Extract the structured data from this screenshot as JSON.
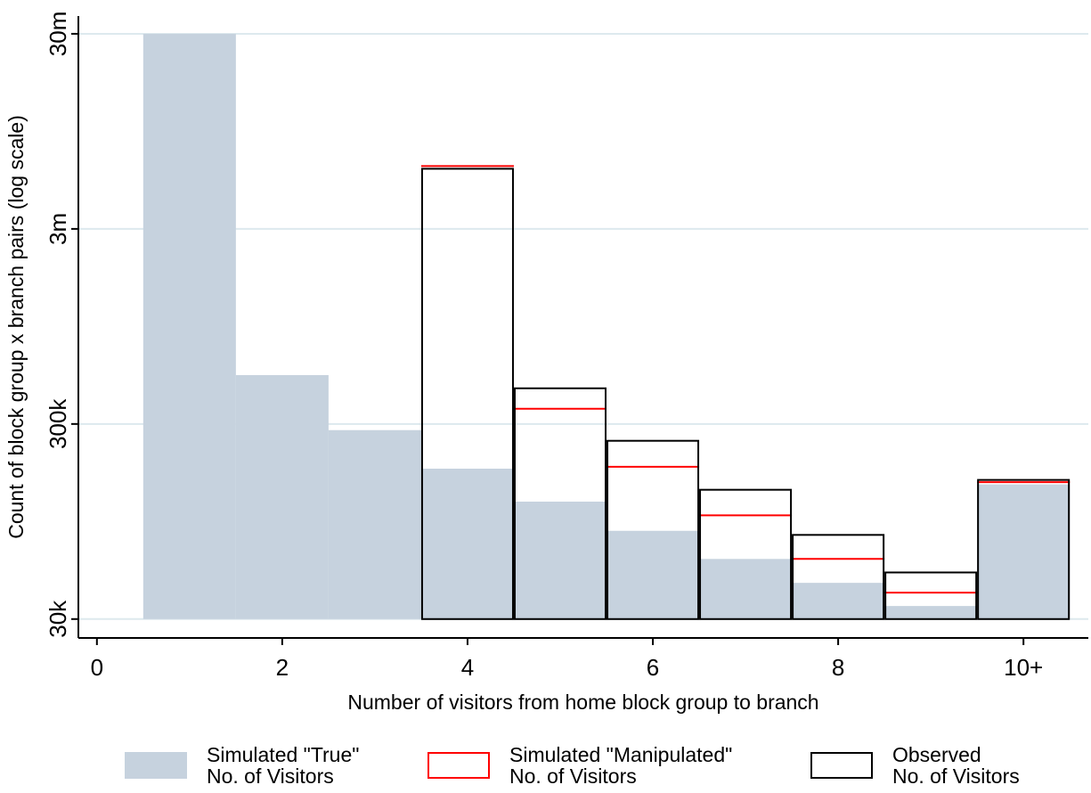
{
  "chart_data": {
    "type": "histogram",
    "x_label": "Number of visitors from home block group to branch",
    "y_label": "Count of block group x branch pairs (log scale)",
    "log_y": true,
    "grid": true,
    "x": [
      1,
      2,
      3,
      4,
      5,
      6,
      7,
      8,
      9,
      10
    ],
    "xlim": [
      -0.2,
      10.7
    ],
    "xticks": [
      0,
      2,
      4,
      6,
      8,
      {
        "value": 10,
        "label": "10+"
      }
    ],
    "ylim": [
      24000,
      37000000
    ],
    "yticks": [
      {
        "value": 30000,
        "label": "30k"
      },
      {
        "value": 300000,
        "label": "300k"
      },
      {
        "value": 3000000,
        "label": "3m"
      },
      {
        "value": 30000000,
        "label": "30m"
      }
    ],
    "series": [
      {
        "name": "Simulated \"True\"\nNo. of Visitors",
        "style": "filled",
        "color": "#c6d2de",
        "values": [
          30000000,
          534000,
          279000,
          177000,
          120000,
          85000,
          61000,
          46000,
          35000,
          147000
        ]
      },
      {
        "name": "Simulated \"Manipulated\"\nNo. of Visitors",
        "style": "level",
        "color": "#ff0000",
        "values": [
          null,
          null,
          null,
          6300000,
          359000,
          181000,
          102000,
          61000,
          41000,
          151000
        ]
      },
      {
        "name": "Observed\nNo. of Visitors",
        "style": "outline",
        "color": "#000000",
        "values": [
          null,
          null,
          null,
          6100000,
          457000,
          246000,
          138000,
          81000,
          52000,
          155000
        ]
      }
    ]
  }
}
